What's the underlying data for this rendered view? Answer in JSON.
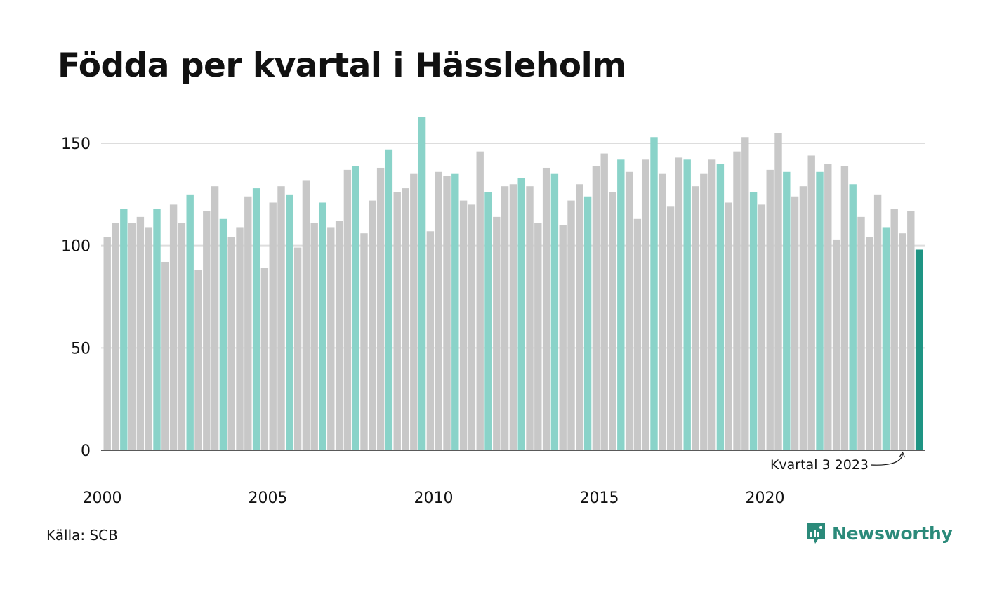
{
  "title": "Födda per kvartal i Hässleholm",
  "source": "Källa: SCB",
  "brand": {
    "name": "Newsworthy",
    "icon": "newsworthy-logo-icon"
  },
  "colors": {
    "bar_default": "#c8c8c8",
    "bar_q3": "#8ad3c9",
    "bar_latest": "#1e9483",
    "gridline": "#dddddd",
    "baseline": "#222222",
    "brand": "#2b8a7a"
  },
  "chart_data": {
    "type": "bar",
    "title": "Födda per kvartal i Hässleholm",
    "ylim": [
      0,
      160
    ],
    "yticks": [
      0,
      50,
      100,
      150
    ],
    "xtick_labels": [
      "2000",
      "2005",
      "2010",
      "2015",
      "2020"
    ],
    "grid": true,
    "start": {
      "year": 2000,
      "quarter": 1
    },
    "highlight": "Q3 bars in teal, latest quarter in dark teal",
    "annotation": "Kvartal 3 2023",
    "values": [
      104,
      111,
      118,
      111,
      114,
      109,
      118,
      92,
      120,
      111,
      125,
      88,
      117,
      129,
      113,
      104,
      109,
      124,
      128,
      89,
      121,
      129,
      125,
      99,
      132,
      111,
      121,
      109,
      112,
      137,
      139,
      106,
      122,
      138,
      147,
      126,
      128,
      135,
      163,
      107,
      136,
      134,
      135,
      122,
      120,
      146,
      126,
      114,
      129,
      130,
      133,
      129,
      111,
      138,
      135,
      110,
      122,
      130,
      124,
      139,
      145,
      126,
      142,
      136,
      113,
      142,
      153,
      135,
      119,
      143,
      142,
      129,
      135,
      142,
      140,
      121,
      146,
      153,
      126,
      120,
      137,
      155,
      136,
      124,
      129,
      144,
      136,
      140,
      103,
      139,
      130,
      114,
      104,
      125,
      109,
      118,
      106,
      117,
      98
    ]
  }
}
